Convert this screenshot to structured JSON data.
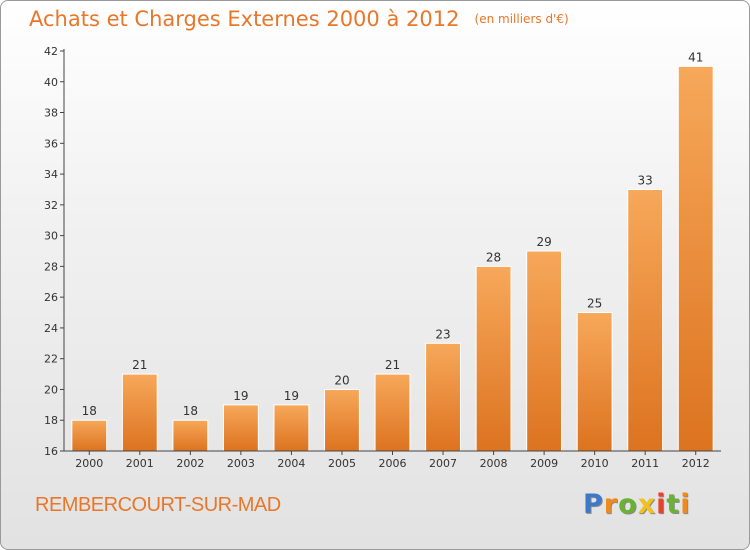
{
  "header": {
    "title": "Achats et Charges Externes 2000 à 2012",
    "unit": "(en milliers d'€)"
  },
  "footer": {
    "commune": "REMBERCOURT-SUR-MAD",
    "logo": "Proxiti"
  },
  "colors": {
    "accent": "#e8772a",
    "bar_light": "#f7a85a",
    "bar_dark": "#dc7320"
  },
  "chart_data": {
    "type": "bar",
    "title": "Achats et Charges Externes 2000 à 2012",
    "subtitle": "(en milliers d'€)",
    "xlabel": "",
    "ylabel": "",
    "categories": [
      "2000",
      "2001",
      "2002",
      "2003",
      "2004",
      "2005",
      "2006",
      "2007",
      "2008",
      "2009",
      "2010",
      "2011",
      "2012"
    ],
    "values": [
      18,
      21,
      18,
      19,
      19,
      20,
      21,
      23,
      28,
      29,
      25,
      33,
      41
    ],
    "ylim": [
      16,
      42
    ],
    "yticks": [
      16,
      18,
      20,
      22,
      24,
      26,
      28,
      30,
      32,
      34,
      36,
      38,
      40,
      42
    ],
    "grid": false,
    "data_labels": true
  }
}
